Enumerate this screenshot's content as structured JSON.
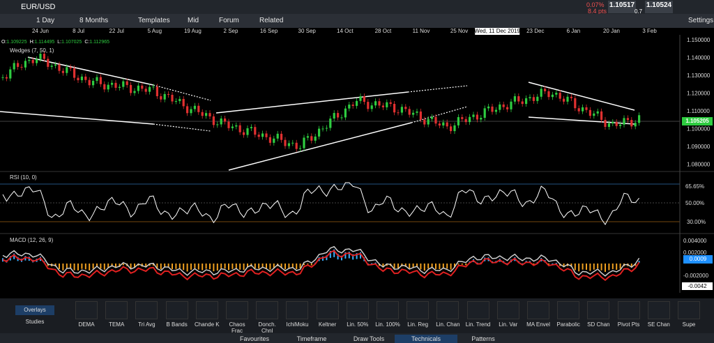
{
  "topbar": {
    "symbol": "EUR/USD",
    "change_pct": "0.07%",
    "change_pts": "8.4 pts",
    "sell": "1.10517",
    "spread": "0.7",
    "buy": "1.10524"
  },
  "toolbar": {
    "interval": "1 Day",
    "range": "8 Months",
    "templates": "Templates",
    "price_type": "Mid",
    "forum": "Forum",
    "related": "Related",
    "settings": "Settings"
  },
  "date_axis": [
    "24 Jun",
    "8 Jul",
    "22 Jul",
    "5 Aug",
    "19 Aug",
    "2 Sep",
    "16 Sep",
    "30 Sep",
    "14 Oct",
    "28 Oct",
    "11 Nov",
    "25 Nov",
    "Wed, 11 Dec 2019",
    "23 Dec",
    "6 Jan",
    "20 Jan",
    "3 Feb"
  ],
  "ohlc": [
    {
      "label": "O:",
      "value": "1.109225"
    },
    {
      "label": "H:",
      "value": "1.114495"
    },
    {
      "label": "L:",
      "value": "1.107025"
    },
    {
      "label": "C:",
      "value": "1.112965"
    }
  ],
  "main": {
    "study": "Wedges (7, 50, 1)",
    "price_ticks": [
      "1.150000",
      "1.140000",
      "1.130000",
      "1.120000",
      "1.110000",
      "1.100000",
      "1.090000",
      "1.080000"
    ],
    "last_price": "1.105205"
  },
  "rsi": {
    "label": "RSI (10, 0)",
    "current": "65.65%",
    "levels": [
      "50.00%",
      "30.00%"
    ]
  },
  "macd": {
    "label": "MACD (12, 26, 9)",
    "ticks": [
      "0.004000",
      "0.002000",
      "-0.002000"
    ],
    "signal": "0.0009",
    "current": "-0.0042"
  },
  "studies_panel": {
    "tabs": [
      "Overlays",
      "Studies"
    ],
    "items": [
      "DEMA",
      "TEMA",
      "Tri Avg",
      "B Bands",
      "Chande K",
      "Chaos Frac",
      "Donch. Chnl",
      "IchiMoku",
      "Keltner",
      "Lin. 50%",
      "Lin. 100%",
      "Lin. Reg",
      "Lin. Chan",
      "Lin. Trend",
      "Lin. Var",
      "MA Envel",
      "Parabolic",
      "SD Chan",
      "Pivot Pts",
      "SE Chan",
      "Supe"
    ]
  },
  "bottom_tabs": [
    "Favourites",
    "Timeframe",
    "Draw Tools",
    "Technicals",
    "Patterns"
  ]
}
